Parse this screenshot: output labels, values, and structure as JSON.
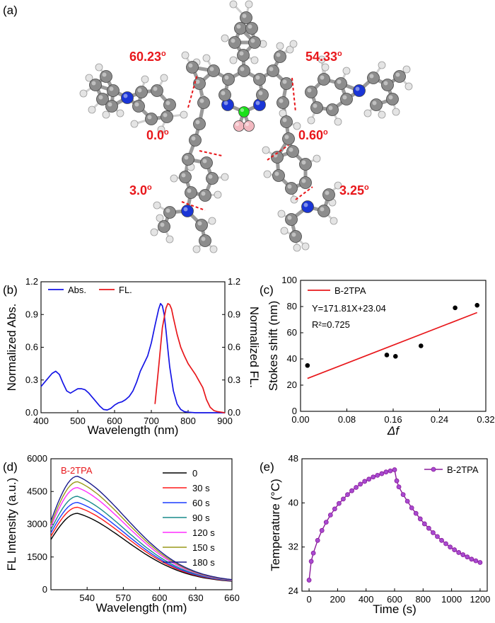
{
  "figure": {
    "panels": {
      "a": {
        "label": "(a)"
      },
      "b": {
        "label": "(b)"
      },
      "c": {
        "label": "(c)"
      },
      "d": {
        "label": "(d)"
      },
      "e": {
        "label": "(e)"
      }
    },
    "dihedral_angles": [
      "60.23",
      "54.33",
      "0.0",
      "0.60",
      "3.0",
      "3.25"
    ],
    "degree_symbol": "o",
    "colors": {
      "angle_text": "#e8171b",
      "carbon": "#8c8c8c",
      "hydrogen": "#e4e4e4",
      "nitrogen": "#1a35d6",
      "boron": "#f2b8c0",
      "fluorine": "#19e019"
    }
  },
  "chart_data": [
    {
      "panel": "b",
      "type": "line",
      "xlabel": "Wavelength (nm)",
      "ylabel": "Normalized Abs.",
      "ylabel_right": "Normalized FL.",
      "xlim": [
        400,
        900
      ],
      "ylim": [
        0,
        1.2
      ],
      "ylim_right": [
        0,
        1.2
      ],
      "xticks": [
        "400",
        "500",
        "600",
        "700",
        "800",
        "900"
      ],
      "yticks": [
        "0.0",
        "0.3",
        "0.6",
        "0.9",
        "1.2"
      ],
      "yticks_right": [
        "0.0",
        "0.3",
        "0.6",
        "0.9",
        "1.2"
      ],
      "legend_position": "top-left",
      "series": [
        {
          "name": "Abs.",
          "color": "#1515e6",
          "axis": "left",
          "x": [
            400,
            410,
            420,
            430,
            440,
            450,
            460,
            470,
            480,
            490,
            500,
            510,
            520,
            530,
            540,
            550,
            560,
            570,
            580,
            590,
            600,
            610,
            620,
            630,
            640,
            650,
            660,
            670,
            680,
            690,
            700,
            710,
            720,
            725,
            730,
            735,
            740,
            745,
            750,
            760,
            770,
            780,
            790,
            800,
            820,
            840,
            860,
            880,
            900
          ],
          "y": [
            0.24,
            0.28,
            0.32,
            0.36,
            0.38,
            0.35,
            0.27,
            0.2,
            0.18,
            0.2,
            0.22,
            0.22,
            0.21,
            0.18,
            0.14,
            0.1,
            0.06,
            0.03,
            0.025,
            0.04,
            0.07,
            0.09,
            0.1,
            0.12,
            0.15,
            0.2,
            0.28,
            0.38,
            0.45,
            0.52,
            0.64,
            0.8,
            0.95,
            1.0,
            0.98,
            0.9,
            0.75,
            0.58,
            0.42,
            0.2,
            0.08,
            0.03,
            0.01,
            0.005,
            0.0,
            0.0,
            0.0,
            0.0,
            0.0
          ]
        },
        {
          "name": "FL.",
          "color": "#e8171b",
          "axis": "right",
          "x": [
            710,
            720,
            730,
            740,
            745,
            750,
            755,
            760,
            770,
            780,
            790,
            800,
            810,
            820,
            830,
            840,
            850,
            860,
            870,
            880,
            890,
            900
          ],
          "y": [
            0.08,
            0.42,
            0.78,
            0.96,
            1.0,
            0.99,
            0.95,
            0.87,
            0.72,
            0.6,
            0.52,
            0.45,
            0.4,
            0.35,
            0.29,
            0.23,
            0.12,
            0.05,
            0.02,
            0.01,
            0.005,
            0.0
          ]
        }
      ]
    },
    {
      "panel": "c",
      "type": "scatter",
      "xlabel": "Δf",
      "ylabel": "Stokes shift (nm)",
      "xlim": [
        0.0,
        0.32
      ],
      "ylim": [
        0,
        100
      ],
      "xticks": [
        "0.00",
        "0.08",
        "0.16",
        "0.24",
        "0.32"
      ],
      "yticks": [
        "0",
        "20",
        "40",
        "60",
        "80",
        "100"
      ],
      "legend_position": "top-left",
      "points": {
        "x": [
          0.012,
          0.149,
          0.164,
          0.208,
          0.267,
          0.305
        ],
        "y": [
          35,
          43,
          42,
          50,
          79,
          81
        ],
        "color": "#000000"
      },
      "fit": {
        "name": "B-2TPA",
        "color": "#e8171b",
        "x": [
          0.012,
          0.305
        ],
        "y": [
          25.1,
          75.4
        ]
      },
      "annotations": [
        "Y=171.81X+23.04",
        "R²=0.725"
      ]
    },
    {
      "panel": "d",
      "type": "line",
      "title": "B-2TPA",
      "xlabel": "Wavelength (nm)",
      "ylabel": "FL Intensity (a.u.)",
      "xlim": [
        510,
        660
      ],
      "ylim": [
        0,
        6000
      ],
      "xticks": [
        "540",
        "570",
        "600",
        "630",
        "660"
      ],
      "yticks": [
        "0",
        "1500",
        "3000",
        "4500",
        "6000"
      ],
      "legend_position": "top-right",
      "peak_wavelength": 532,
      "series": [
        {
          "name": "0",
          "color": "#000000",
          "start": 2300,
          "peak": 3500,
          "end": 320
        },
        {
          "name": "30 s",
          "color": "#ff1a1a",
          "start": 2450,
          "peak": 3780,
          "end": 330
        },
        {
          "name": "60 s",
          "color": "#1a3cff",
          "start": 2600,
          "peak": 4000,
          "end": 335
        },
        {
          "name": "90 s",
          "color": "#1a8c8c",
          "start": 2750,
          "peak": 4280,
          "end": 340
        },
        {
          "name": "120 s",
          "color": "#ff2dff",
          "start": 2900,
          "peak": 4680,
          "end": 345
        },
        {
          "name": "150 s",
          "color": "#9a9a1a",
          "start": 3000,
          "peak": 4950,
          "end": 350
        },
        {
          "name": "180 s",
          "color": "#1a1a8c",
          "start": 3150,
          "peak": 5200,
          "end": 355
        }
      ]
    },
    {
      "panel": "e",
      "type": "line",
      "xlabel": "Time (s)",
      "ylabel": "Temperature (°C)",
      "xlim": [
        -50,
        1250
      ],
      "ylim": [
        24,
        48
      ],
      "xticks": [
        "0",
        "200",
        "400",
        "600",
        "800",
        "1000",
        "1200"
      ],
      "yticks": [
        "24",
        "32",
        "40",
        "48"
      ],
      "legend_position": "top-right",
      "series": [
        {
          "name": "B-2TPA",
          "color": "#8a1a9a",
          "marker_color": "#a84ad0",
          "x": [
            0,
            15,
            30,
            60,
            90,
            120,
            150,
            180,
            210,
            240,
            270,
            300,
            330,
            360,
            390,
            420,
            450,
            480,
            510,
            540,
            570,
            600,
            615,
            630,
            660,
            690,
            720,
            750,
            780,
            810,
            840,
            870,
            900,
            930,
            960,
            990,
            1020,
            1050,
            1080,
            1110,
            1140,
            1170,
            1200
          ],
          "y": [
            26.0,
            29.4,
            30.9,
            33.2,
            35.0,
            36.5,
            37.8,
            38.9,
            39.9,
            40.7,
            41.5,
            42.2,
            42.8,
            43.4,
            43.9,
            44.3,
            44.7,
            45.0,
            45.3,
            45.6,
            45.8,
            46.0,
            44.0,
            42.9,
            41.5,
            40.3,
            39.1,
            38.1,
            37.1,
            36.2,
            35.4,
            34.6,
            33.9,
            33.2,
            32.6,
            32.0,
            31.5,
            31.0,
            30.6,
            30.2,
            29.8,
            29.5,
            29.2
          ]
        }
      ]
    }
  ]
}
